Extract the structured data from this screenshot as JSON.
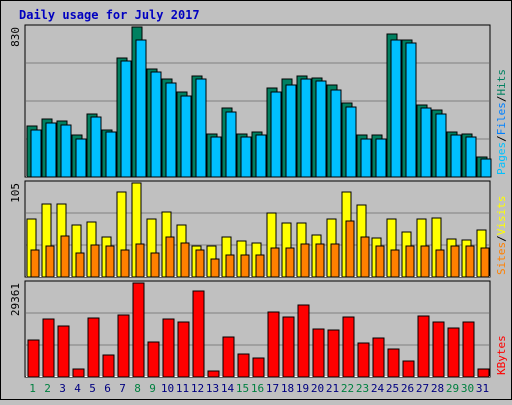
{
  "chart_data": {
    "type": "bar",
    "title": "Daily usage for July 2017",
    "categories": [
      "1",
      "2",
      "3",
      "4",
      "5",
      "6",
      "7",
      "8",
      "9",
      "10",
      "11",
      "12",
      "13",
      "14",
      "15",
      "16",
      "17",
      "18",
      "19",
      "20",
      "21",
      "22",
      "23",
      "24",
      "25",
      "26",
      "27",
      "28",
      "29",
      "30",
      "31"
    ],
    "weekend_days": [
      "1",
      "2",
      "8",
      "9",
      "15",
      "16",
      "22",
      "23",
      "29",
      "30"
    ],
    "panels": [
      {
        "id": "top",
        "max_label": "830",
        "ylim": [
          0,
          830
        ],
        "legend": [
          {
            "text": "Pages",
            "color": "#00c0ff"
          },
          {
            "text": "/",
            "color": "#000000"
          },
          {
            "text": "Files",
            "color": "#0080ff"
          },
          {
            "text": "/",
            "color": "#000000"
          },
          {
            "text": "Hits",
            "color": "#008060"
          }
        ],
        "series": [
          {
            "name": "Hits",
            "color": "#008060",
            "values": [
              280,
              320,
              310,
              230,
              350,
              260,
              660,
              830,
              600,
              540,
              470,
              560,
              240,
              380,
              240,
              250,
              490,
              540,
              560,
              550,
              510,
              410,
              230,
              230,
              790,
              760,
              400,
              370,
              250,
              240,
              110
            ]
          },
          {
            "name": "Files",
            "color": "#00c0ff",
            "values": [
              260,
              300,
              290,
              210,
              330,
              250,
              640,
              760,
              580,
              520,
              450,
              540,
              220,
              360,
              220,
              230,
              470,
              510,
              540,
              530,
              480,
              390,
              210,
              210,
              760,
              740,
              380,
              350,
              230,
              220,
              100
            ]
          }
        ]
      },
      {
        "id": "mid",
        "max_label": "105",
        "ylim": [
          0,
          105
        ],
        "legend": [
          {
            "text": "Sites",
            "color": "#ff8000"
          },
          {
            "text": "/",
            "color": "#000000"
          },
          {
            "text": "Visits",
            "color": "#ffff00"
          }
        ],
        "series": [
          {
            "name": "Visits",
            "color": "#ffff00",
            "values": [
              65,
              81,
              82,
              58,
              61,
              45,
              95,
              105,
              65,
              73,
              58,
              35,
              35,
              45,
              40,
              38,
              72,
              60,
              60,
              47,
              65,
              95,
              80,
              44,
              65,
              50,
              65,
              66,
              43,
              41,
              52
            ]
          },
          {
            "name": "Sites",
            "color": "#ff8000",
            "values": [
              30,
              35,
              46,
              27,
              36,
              35,
              30,
              37,
              27,
              45,
              38,
              30,
              20,
              25,
              25,
              25,
              32,
              32,
              37,
              37,
              37,
              62,
              45,
              35,
              30,
              35,
              35,
              30,
              35,
              35,
              32
            ]
          }
        ]
      },
      {
        "id": "bot",
        "max_label": "29361",
        "ylim": [
          0,
          29361
        ],
        "legend": [
          {
            "text": "KBytes",
            "color": "#ff0000"
          }
        ],
        "series": [
          {
            "name": "KBytes",
            "color": "#ff0000",
            "values": [
              11500,
              18200,
              16000,
              2500,
              18500,
              7000,
              19300,
              29361,
              10800,
              18200,
              17300,
              26800,
              2000,
              12500,
              7200,
              6000,
              20200,
              18600,
              22600,
              15000,
              14800,
              18600,
              10500,
              12300,
              8600,
              5000,
              19000,
              17200,
              15300,
              17100,
              2500
            ]
          }
        ]
      }
    ]
  }
}
